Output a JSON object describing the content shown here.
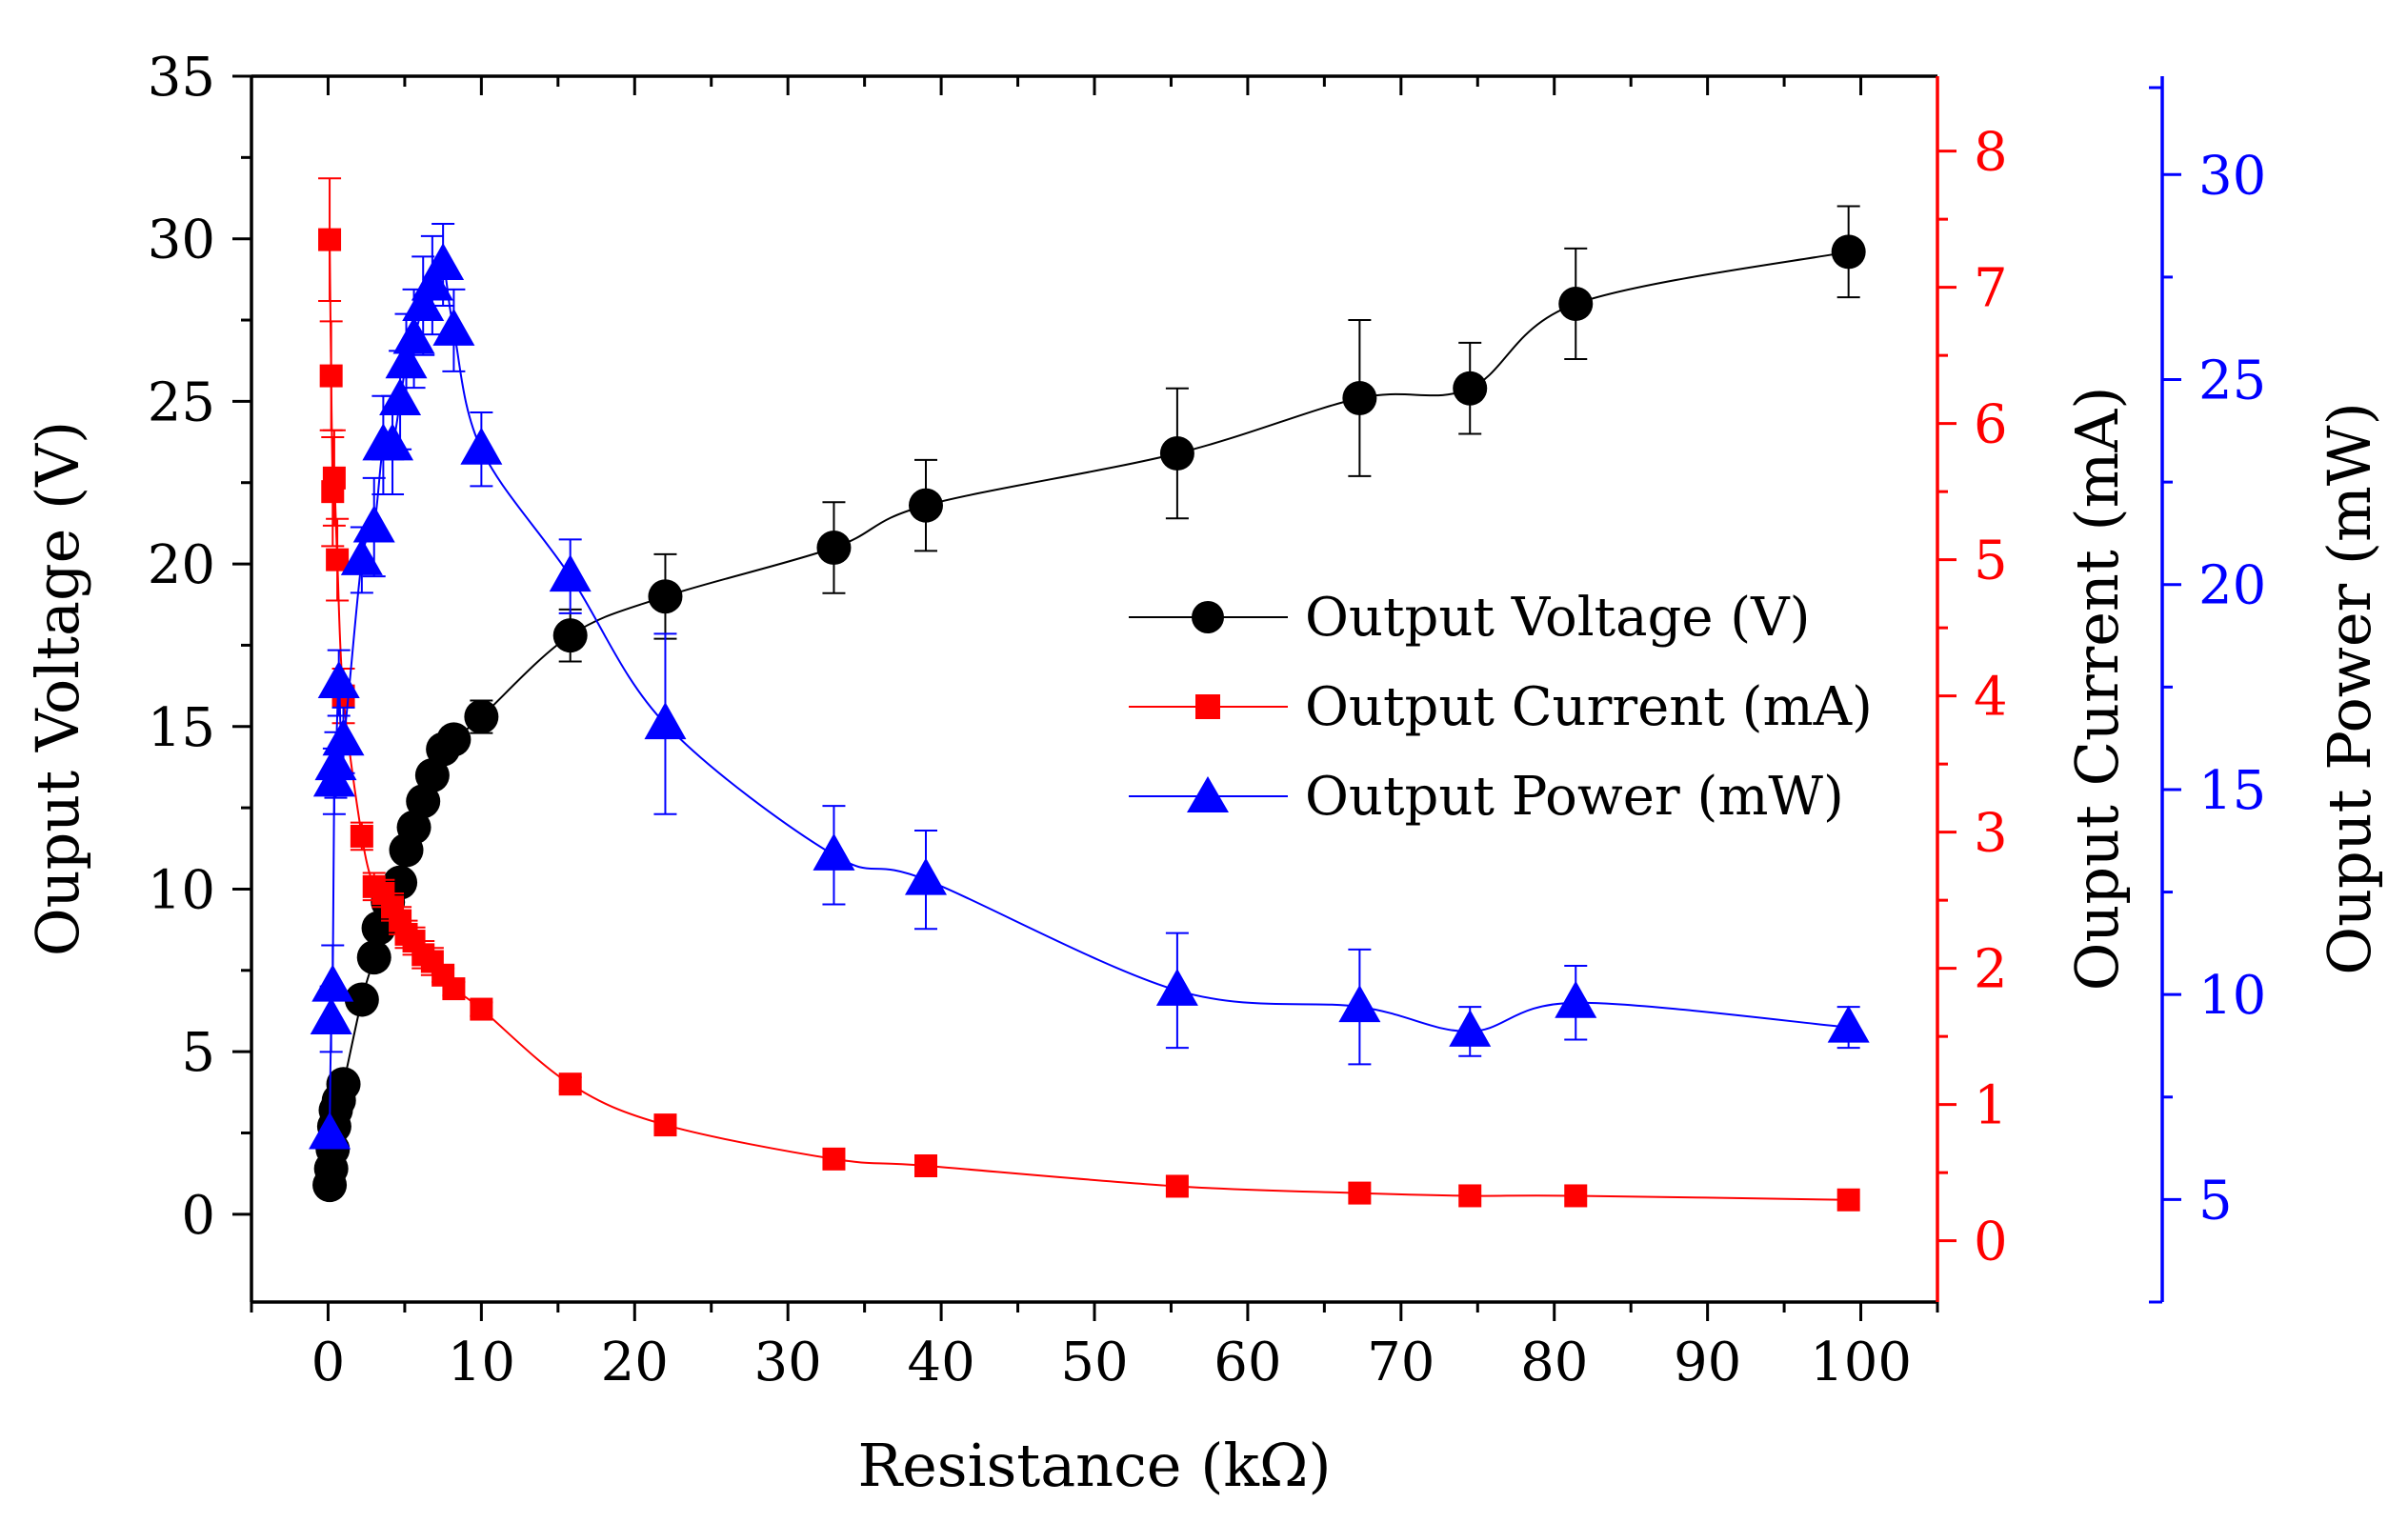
{
  "chart_data": {
    "type": "line",
    "xlabel": "Resistance (kΩ)",
    "xlim": [
      -5,
      105
    ],
    "xticks": [
      0,
      10,
      20,
      30,
      40,
      50,
      60,
      70,
      80,
      90,
      100
    ],
    "axes": {
      "voltage": {
        "label": "Ouput Voltage (V)",
        "color": "#000000",
        "lim": [
          -2.7,
          35
        ],
        "ticks": [
          0,
          5,
          10,
          15,
          20,
          25,
          30,
          35
        ]
      },
      "current": {
        "label": "Ouput Current (mA)",
        "color": "#ff0000",
        "lim": [
          -0.45,
          8.55
        ],
        "ticks": [
          0,
          1,
          2,
          3,
          4,
          5,
          6,
          7,
          8
        ]
      },
      "power": {
        "label": "Ouput Power (mW)",
        "color": "#0000ff",
        "lim": [
          2.5,
          32.4
        ],
        "ticks": [
          5,
          10,
          15,
          20,
          25,
          30
        ]
      }
    },
    "series": [
      {
        "name": "Output Voltage (V)",
        "axis": "voltage",
        "color": "#000000",
        "marker": "circle",
        "x": [
          0.1,
          0.2,
          0.3,
          0.4,
          0.5,
          0.7,
          1.0,
          2.2,
          3.0,
          3.3,
          3.9,
          4.7,
          5.1,
          5.6,
          6.2,
          6.8,
          7.5,
          8.2,
          10,
          15.8,
          22,
          33,
          39,
          55.4,
          67.3,
          74.5,
          81.4,
          99.2
        ],
        "y": [
          0.9,
          1.4,
          2.0,
          2.7,
          3.2,
          3.5,
          4.0,
          6.6,
          7.9,
          8.8,
          9.6,
          10.2,
          11.2,
          11.9,
          12.7,
          13.5,
          14.3,
          14.6,
          15.3,
          17.8,
          19.0,
          20.5,
          21.8,
          23.4,
          25.1,
          25.4,
          28.0,
          29.6
        ],
        "err": [
          0,
          0,
          0,
          0,
          0,
          0,
          0,
          0,
          0,
          0,
          0,
          0,
          0,
          0,
          0,
          0,
          0,
          0,
          0.5,
          0.8,
          1.3,
          1.4,
          1.4,
          2.0,
          2.4,
          1.4,
          1.7,
          1.4
        ]
      },
      {
        "name": "Output Current (mA)",
        "axis": "current",
        "color": "#ff0000",
        "marker": "square",
        "x": [
          0.1,
          0.2,
          0.3,
          0.4,
          0.6,
          1.0,
          2.2,
          3.0,
          3.6,
          4.2,
          4.7,
          5.1,
          5.6,
          6.2,
          6.8,
          7.5,
          8.2,
          10,
          15.8,
          22,
          33,
          39,
          55.4,
          67.3,
          74.5,
          81.4,
          99.2
        ],
        "y": [
          7.35,
          6.35,
          5.5,
          5.6,
          5.0,
          4.0,
          2.97,
          2.6,
          2.55,
          2.45,
          2.35,
          2.25,
          2.2,
          2.1,
          2.05,
          1.95,
          1.85,
          1.7,
          1.15,
          0.85,
          0.6,
          0.55,
          0.4,
          0.35,
          0.33,
          0.33,
          0.3
        ],
        "err": [
          0.45,
          0.4,
          0.4,
          0.35,
          0.3,
          0.2,
          0.1,
          0.1,
          0.1,
          0.1,
          0.1,
          0.1,
          0.1,
          0.1,
          0.1,
          0.05,
          0.05,
          0.05,
          0.05,
          0,
          0,
          0,
          0,
          0,
          0,
          0,
          0
        ]
      },
      {
        "name": "Output Power (mW)",
        "axis": "power",
        "color": "#0000ff",
        "marker": "triangle",
        "x": [
          0.1,
          0.2,
          0.3,
          0.4,
          0.5,
          0.7,
          1.0,
          2.2,
          3.0,
          3.6,
          4.2,
          4.7,
          5.1,
          5.6,
          6.2,
          6.8,
          7.5,
          8.2,
          10,
          15.8,
          22,
          33,
          39,
          55.4,
          67.3,
          74.5,
          81.4,
          99.2
        ],
        "y": [
          6.6,
          9.4,
          10.2,
          15.2,
          15.6,
          17.6,
          16.2,
          20.6,
          21.4,
          23.4,
          23.4,
          24.5,
          25.4,
          26.0,
          26.8,
          27.3,
          27.8,
          26.2,
          23.3,
          20.2,
          16.6,
          13.4,
          12.8,
          10.1,
          9.7,
          9.1,
          9.8,
          9.2
        ],
        "err": [
          0,
          0.8,
          1.0,
          0.8,
          0.8,
          0.8,
          0.8,
          0.8,
          1.2,
          1.2,
          1.2,
          1.2,
          1.2,
          1.2,
          1.2,
          1.2,
          1.0,
          1.0,
          0.9,
          0.9,
          2.2,
          1.2,
          1.2,
          1.4,
          1.4,
          0.6,
          0.9,
          0.5
        ]
      }
    ]
  }
}
